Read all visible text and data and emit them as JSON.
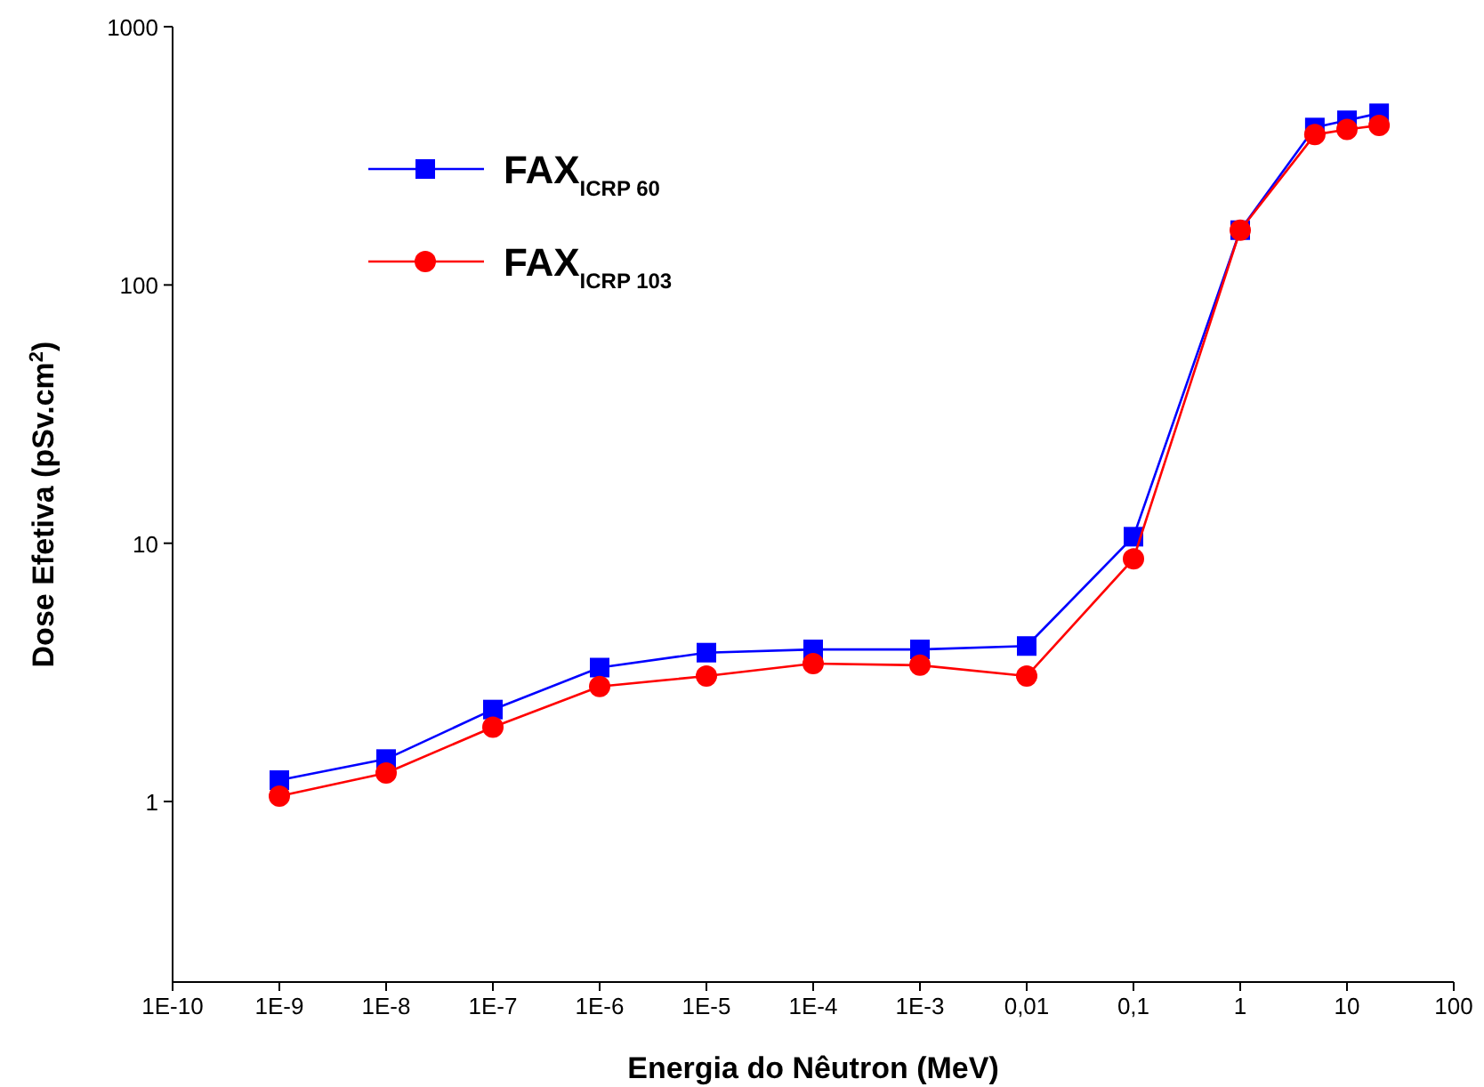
{
  "chart_data": {
    "type": "line",
    "xlabel": "Energia do Nêutron (MeV)",
    "ylabel": "Dose Efetiva (pSv.cm$^{2}$)",
    "log": "xy",
    "xlim": [
      1e-10,
      100
    ],
    "ylim": [
      0.2,
      1000
    ],
    "xticks": [
      {
        "value": 1e-10,
        "label": "1E-10"
      },
      {
        "value": 1e-09,
        "label": "1E-9"
      },
      {
        "value": 1e-08,
        "label": "1E-8"
      },
      {
        "value": 1e-07,
        "label": "1E-7"
      },
      {
        "value": 1e-06,
        "label": "1E-6"
      },
      {
        "value": 1e-05,
        "label": "1E-5"
      },
      {
        "value": 0.0001,
        "label": "1E-4"
      },
      {
        "value": 0.001,
        "label": "1E-3"
      },
      {
        "value": 0.01,
        "label": "0,01"
      },
      {
        "value": 0.1,
        "label": "0,1"
      },
      1,
      10,
      100
    ],
    "yticks": [
      1,
      10,
      100,
      1000
    ],
    "grid": false,
    "legend": "top left",
    "line_style": "solid",
    "x": [
      1e-09,
      1e-08,
      1e-07,
      1e-06,
      1e-05,
      0.0001,
      0.001,
      0.01,
      0.1,
      1,
      5,
      10,
      20
    ],
    "series": [
      {
        "name": "FAX$_{ICRP 60}$",
        "color": "#0000ff",
        "marker": "square",
        "values": [
          1.21,
          1.46,
          2.27,
          3.3,
          3.77,
          3.88,
          3.88,
          4.0,
          10.6,
          163,
          407,
          434,
          462
        ]
      },
      {
        "name": "FAX$_{ICRP 103}$",
        "color": "#ff0000",
        "marker": "circle",
        "values": [
          1.05,
          1.29,
          1.94,
          2.79,
          3.06,
          3.42,
          3.37,
          3.06,
          8.7,
          163,
          382,
          400,
          415
        ]
      }
    ]
  }
}
